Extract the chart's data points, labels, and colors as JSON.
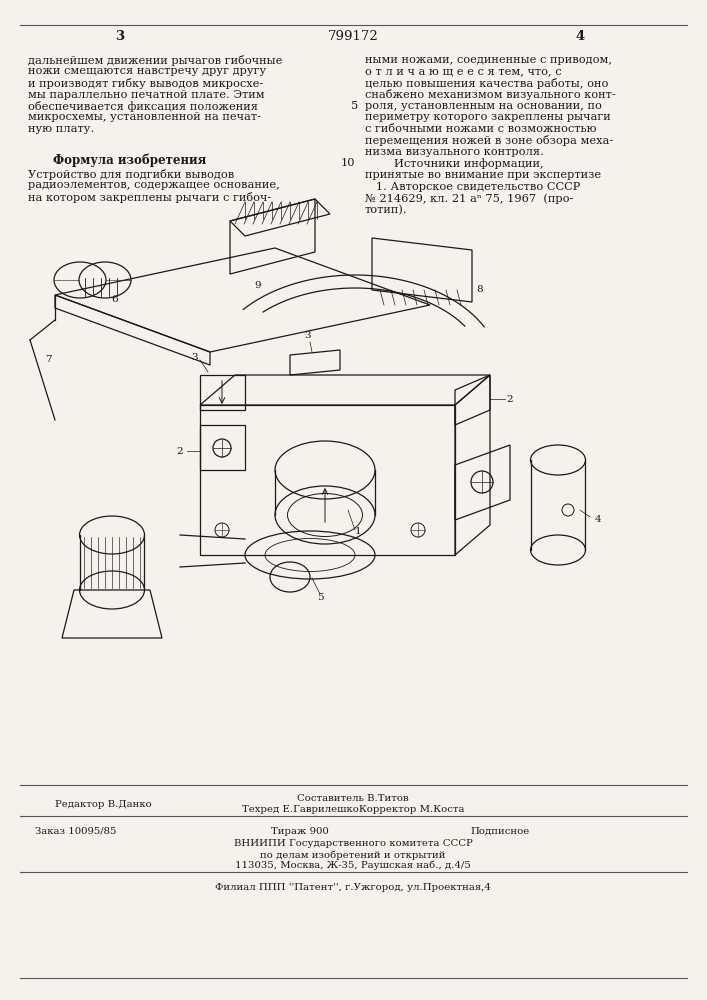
{
  "bg_color": "#f0ede8",
  "page_color": "#f5f2ed",
  "border_color": "#888888",
  "text_color": "#1a1a1a",
  "top_left_page": "3",
  "top_center": "799172",
  "top_right_page": "4",
  "col_left_text": [
    "дальнейшем движении рычагов гибочные",
    "ножи смещаются навстречу друг другу",
    "и производят гибку выводов микросхе-",
    "мы параллельно печатной плате. Этим",
    "обеспечивается фиксация положения",
    "микросхемы, установленной на печат-",
    "ную плату."
  ],
  "col_left_formula_title": "Формула изобретения",
  "col_left_formula_text": [
    "Устройство для подгибки выводов",
    "радиоэлементов, содержащее основание,",
    "на котором закреплены рычаги с гибоч-"
  ],
  "col_right_line_num_5": "5",
  "col_right_line_num_10": "10",
  "col_right_text": [
    "ными ножами, соединенные с приводом,",
    "о т л и ч а ю щ е е с я тем, что, с",
    "целью повышения качества работы, оно",
    "снабжено механизмом визуального конт-",
    "роля, установленным на основании, по",
    "периметру которого закреплены рычаги",
    "с гибочными ножами с возможностью",
    "перемещения ножей в зоне обзора меха-",
    "низма визуального контроля.",
    "        Источники информации,",
    "принятые во внимание при экспертизе",
    "   1. Авторское свидетельство СССР",
    "№ 214629, кл. 21 аⁿ 75, 1967  (про-",
    "тотип)."
  ],
  "bottom_editor": "Редактор В.Данко",
  "bottom_compositor": "Составитель В.Титов",
  "bottom_techred": "Техред Е.ГаврилешкоКорректор М.Коста",
  "bottom_order": "Заказ 10095/85",
  "bottom_tirazh": "Тираж 900",
  "bottom_podpisnoe": "Подписное",
  "bottom_vniip1": "ВНИИПИ Государственного комитета СССР",
  "bottom_vniip2": "по делам изобретений и открытий",
  "bottom_vniip3": "113035, Москва, Ж-35, Раушская наб., д.4/5",
  "bottom_filial": "Филиал ППП ''Патент'', г.Ужгород, ул.Проектная,4"
}
